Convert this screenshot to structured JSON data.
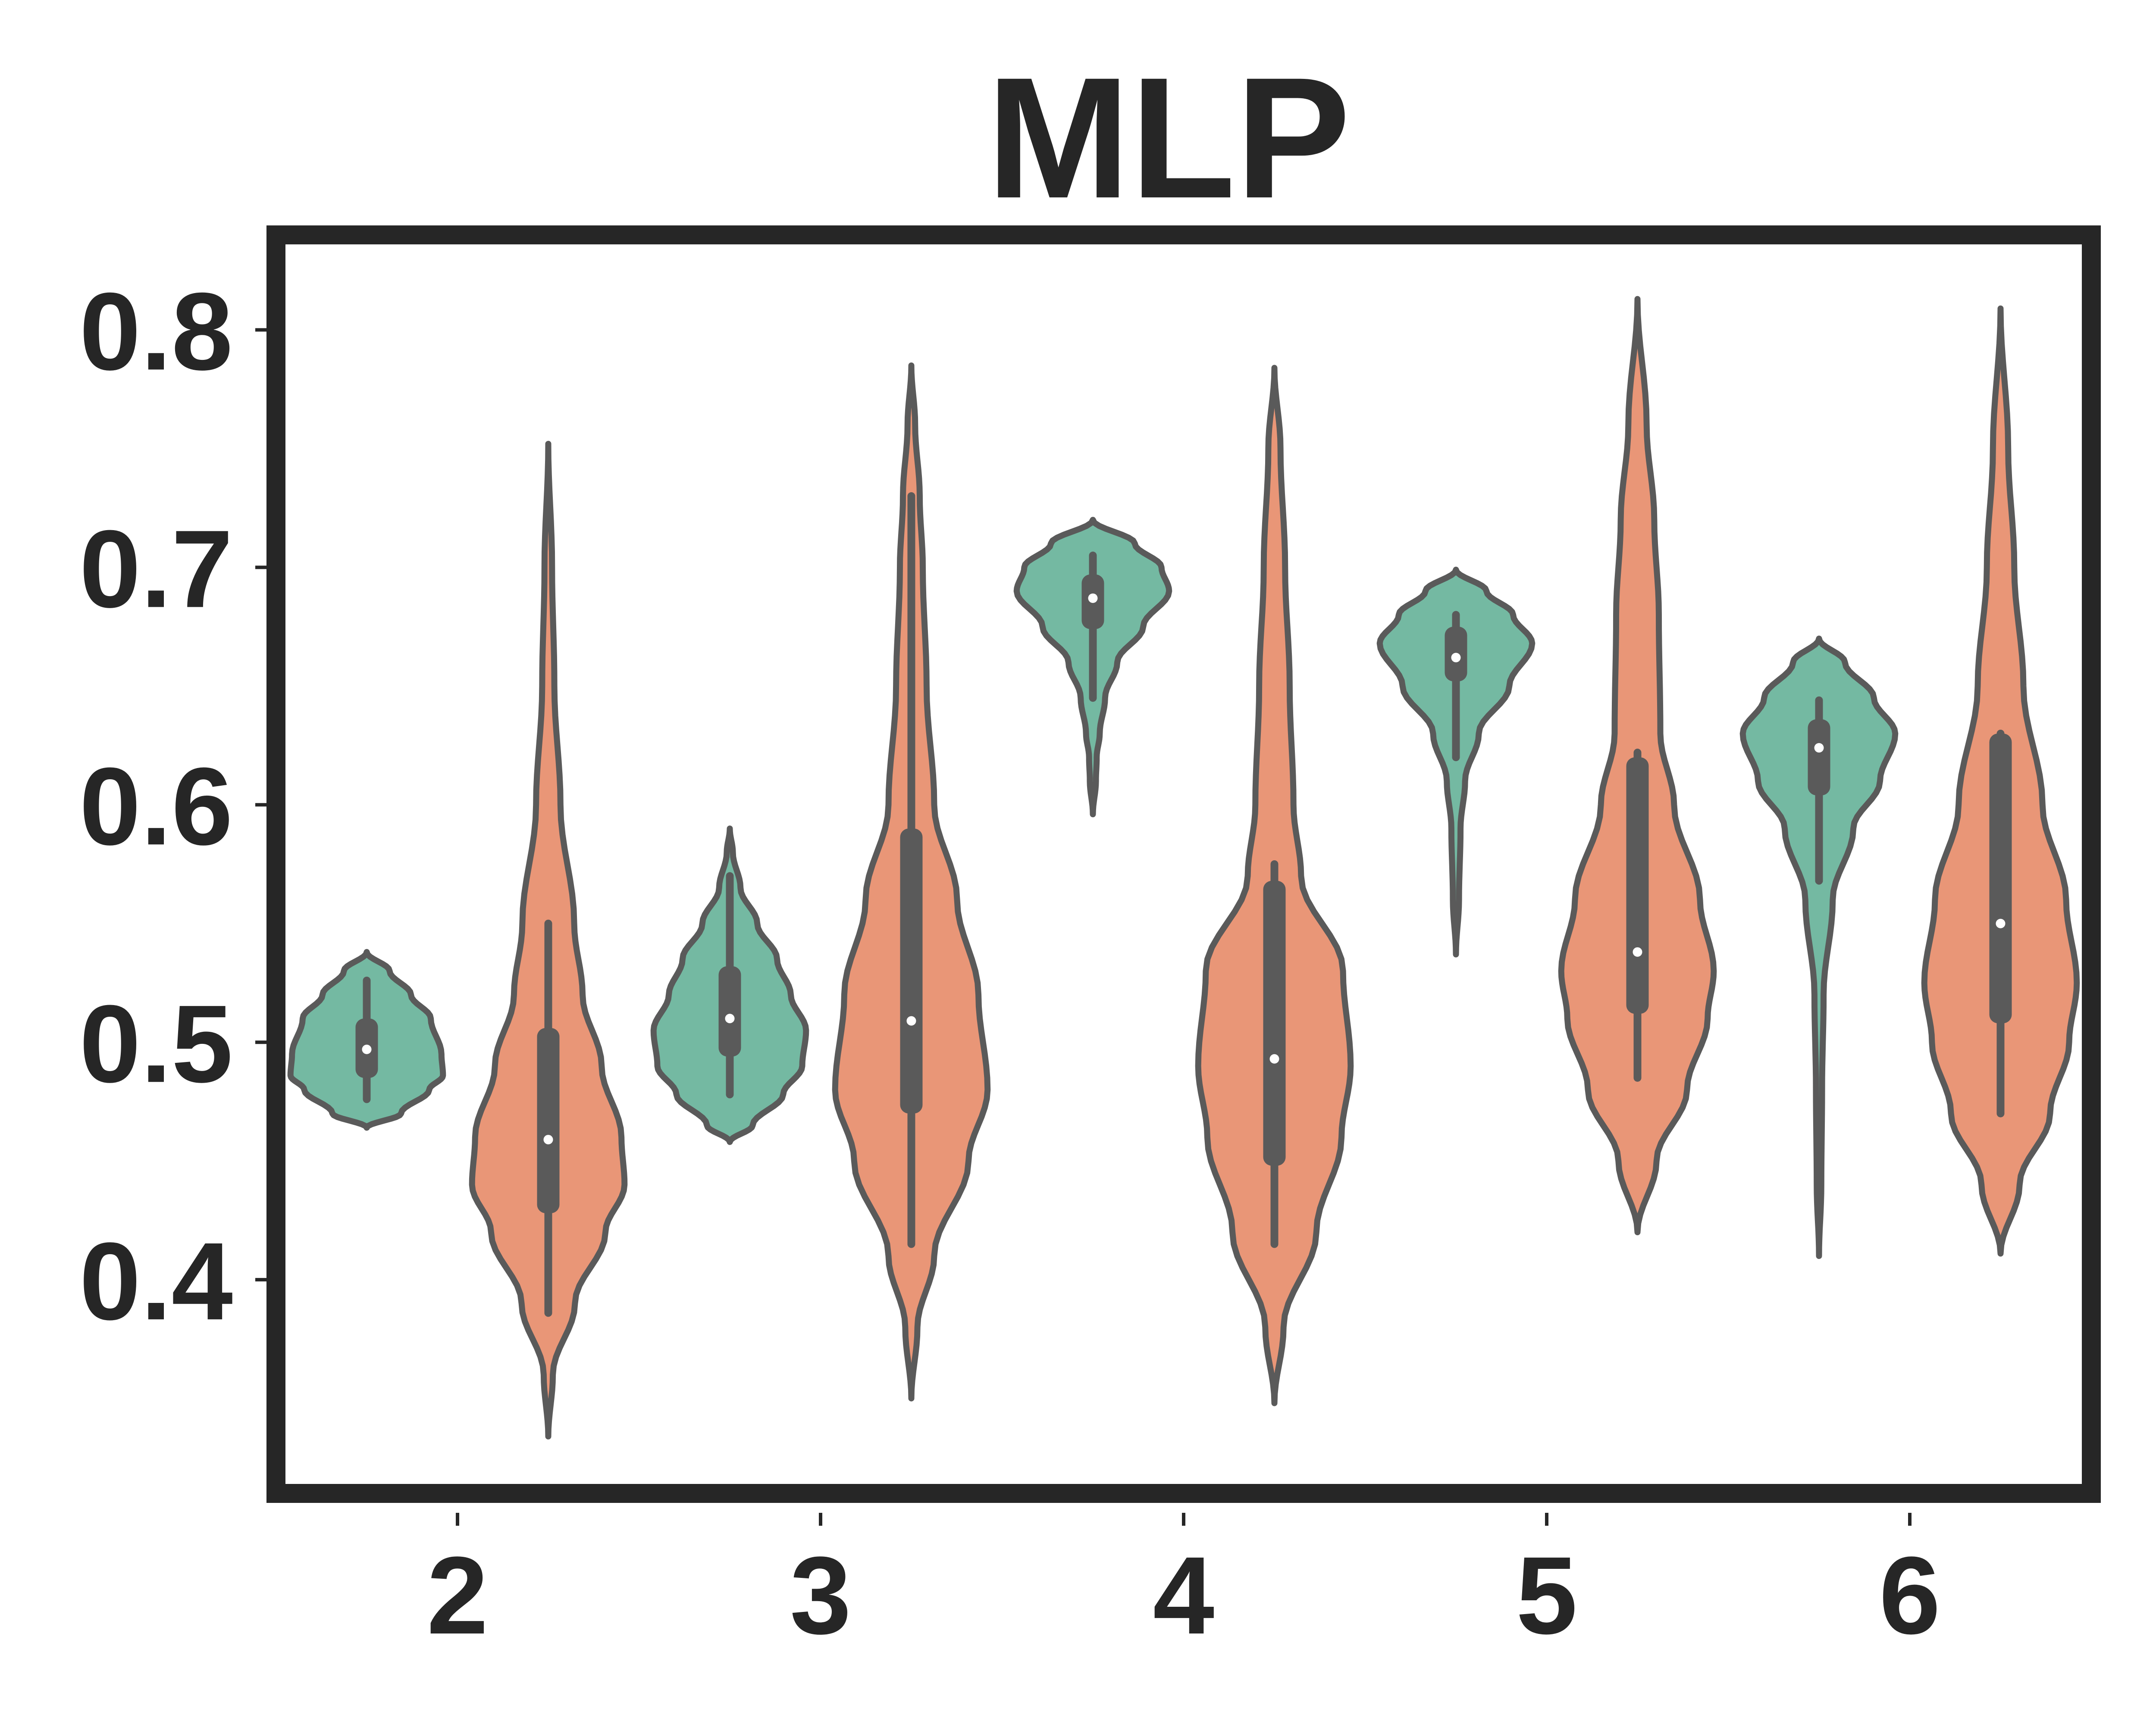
{
  "chart_data": {
    "type": "violin",
    "title": "MLP",
    "xlabel": "",
    "ylabel": "",
    "categories": [
      "2",
      "3",
      "4",
      "5",
      "6"
    ],
    "ylim": [
      0.31,
      0.84
    ],
    "yticks": [
      0.4,
      0.5,
      0.6,
      0.7,
      0.8
    ],
    "ytick_labels": [
      "0.4",
      "0.5",
      "0.6",
      "0.7",
      "0.8"
    ],
    "grid": false,
    "legend": "none",
    "colors": {
      "series_a": "#74b9a2",
      "series_b": "#e99677",
      "outline": "#5a5a5a",
      "frame": "#262626"
    },
    "series": [
      {
        "color": "#74b9a2",
        "violins": [
          {
            "min": 0.464,
            "q1": 0.485,
            "median": 0.497,
            "q3": 0.51,
            "max": 0.538,
            "whisker_low": 0.476,
            "whisker_high": 0.526,
            "profile": [
              [
                0.464,
                0.0
              ],
              [
                0.47,
                0.45
              ],
              [
                0.48,
                0.82
              ],
              [
                0.486,
                1.0
              ],
              [
                0.495,
                0.98
              ],
              [
                0.51,
                0.84
              ],
              [
                0.52,
                0.58
              ],
              [
                0.53,
                0.3
              ],
              [
                0.538,
                0.0
              ]
            ]
          },
          {
            "min": 0.458,
            "q1": 0.494,
            "median": 0.51,
            "q3": 0.532,
            "max": 0.59,
            "whisker_low": 0.478,
            "whisker_high": 0.57,
            "profile": [
              [
                0.458,
                0.0
              ],
              [
                0.465,
                0.3
              ],
              [
                0.478,
                0.7
              ],
              [
                0.49,
                0.95
              ],
              [
                0.505,
                1.0
              ],
              [
                0.52,
                0.8
              ],
              [
                0.535,
                0.62
              ],
              [
                0.55,
                0.36
              ],
              [
                0.565,
                0.14
              ],
              [
                0.58,
                0.04
              ],
              [
                0.59,
                0.0
              ]
            ]
          },
          {
            "min": 0.596,
            "q1": 0.674,
            "median": 0.687,
            "q3": 0.697,
            "max": 0.72,
            "whisker_low": 0.645,
            "whisker_high": 0.705,
            "profile": [
              [
                0.596,
                0.0
              ],
              [
                0.61,
                0.04
              ],
              [
                0.62,
                0.05
              ],
              [
                0.63,
                0.09
              ],
              [
                0.645,
                0.16
              ],
              [
                0.66,
                0.32
              ],
              [
                0.675,
                0.66
              ],
              [
                0.69,
                1.0
              ],
              [
                0.7,
                0.9
              ],
              [
                0.71,
                0.55
              ],
              [
                0.72,
                0.0
              ]
            ]
          },
          {
            "min": 0.537,
            "q1": 0.652,
            "median": 0.662,
            "q3": 0.675,
            "max": 0.699,
            "whisker_low": 0.62,
            "whisker_high": 0.68,
            "profile": [
              [
                0.537,
                0.0
              ],
              [
                0.56,
                0.04
              ],
              [
                0.59,
                0.06
              ],
              [
                0.61,
                0.12
              ],
              [
                0.63,
                0.3
              ],
              [
                0.65,
                0.7
              ],
              [
                0.668,
                1.0
              ],
              [
                0.68,
                0.75
              ],
              [
                0.69,
                0.4
              ],
              [
                0.699,
                0.0
              ]
            ]
          },
          {
            "min": 0.41,
            "q1": 0.604,
            "median": 0.624,
            "q3": 0.636,
            "max": 0.67,
            "whisker_low": 0.568,
            "whisker_high": 0.644,
            "profile": [
              [
                0.41,
                0.0
              ],
              [
                0.44,
                0.03
              ],
              [
                0.48,
                0.04
              ],
              [
                0.52,
                0.06
              ],
              [
                0.56,
                0.18
              ],
              [
                0.59,
                0.45
              ],
              [
                0.61,
                0.8
              ],
              [
                0.63,
                1.0
              ],
              [
                0.645,
                0.72
              ],
              [
                0.66,
                0.34
              ],
              [
                0.67,
                0.0
              ]
            ]
          }
        ]
      },
      {
        "color": "#e99677",
        "violins": [
          {
            "min": 0.334,
            "q1": 0.428,
            "median": 0.459,
            "q3": 0.506,
            "max": 0.752,
            "whisker_low": 0.386,
            "whisker_high": 0.55,
            "profile": [
              [
                0.334,
                0.0
              ],
              [
                0.36,
                0.06
              ],
              [
                0.39,
                0.35
              ],
              [
                0.42,
                0.75
              ],
              [
                0.44,
                1.0
              ],
              [
                0.46,
                0.96
              ],
              [
                0.49,
                0.7
              ],
              [
                0.52,
                0.45
              ],
              [
                0.55,
                0.34
              ],
              [
                0.6,
                0.16
              ],
              [
                0.65,
                0.08
              ],
              [
                0.7,
                0.05
              ],
              [
                0.752,
                0.0
              ]
            ]
          },
          {
            "min": 0.35,
            "q1": 0.47,
            "median": 0.509,
            "q3": 0.59,
            "max": 0.785,
            "whisker_low": 0.415,
            "whisker_high": 0.73,
            "profile": [
              [
                0.35,
                0.0
              ],
              [
                0.38,
                0.08
              ],
              [
                0.41,
                0.3
              ],
              [
                0.45,
                0.75
              ],
              [
                0.48,
                1.0
              ],
              [
                0.52,
                0.88
              ],
              [
                0.56,
                0.6
              ],
              [
                0.6,
                0.3
              ],
              [
                0.65,
                0.2
              ],
              [
                0.7,
                0.15
              ],
              [
                0.73,
                0.11
              ],
              [
                0.76,
                0.05
              ],
              [
                0.785,
                0.0
              ]
            ]
          },
          {
            "min": 0.348,
            "q1": 0.448,
            "median": 0.493,
            "q3": 0.568,
            "max": 0.784,
            "whisker_low": 0.415,
            "whisker_high": 0.575,
            "profile": [
              [
                0.348,
                0.0
              ],
              [
                0.38,
                0.12
              ],
              [
                0.42,
                0.55
              ],
              [
                0.46,
                0.88
              ],
              [
                0.49,
                1.0
              ],
              [
                0.53,
                0.9
              ],
              [
                0.57,
                0.35
              ],
              [
                0.6,
                0.25
              ],
              [
                0.65,
                0.2
              ],
              [
                0.7,
                0.14
              ],
              [
                0.75,
                0.08
              ],
              [
                0.784,
                0.0
              ]
            ]
          },
          {
            "min": 0.42,
            "q1": 0.512,
            "median": 0.538,
            "q3": 0.62,
            "max": 0.813,
            "whisker_low": 0.485,
            "whisker_high": 0.622,
            "profile": [
              [
                0.42,
                0.0
              ],
              [
                0.45,
                0.25
              ],
              [
                0.48,
                0.65
              ],
              [
                0.51,
                0.92
              ],
              [
                0.53,
                1.0
              ],
              [
                0.56,
                0.82
              ],
              [
                0.6,
                0.48
              ],
              [
                0.63,
                0.3
              ],
              [
                0.68,
                0.28
              ],
              [
                0.72,
                0.22
              ],
              [
                0.76,
                0.12
              ],
              [
                0.813,
                0.0
              ]
            ]
          },
          {
            "min": 0.411,
            "q1": 0.508,
            "median": 0.55,
            "q3": 0.63,
            "max": 0.809,
            "whisker_low": 0.47,
            "whisker_high": 0.63,
            "profile": [
              [
                0.411,
                0.0
              ],
              [
                0.44,
                0.25
              ],
              [
                0.47,
                0.65
              ],
              [
                0.5,
                0.9
              ],
              [
                0.525,
                1.0
              ],
              [
                0.56,
                0.86
              ],
              [
                0.6,
                0.55
              ],
              [
                0.65,
                0.3
              ],
              [
                0.7,
                0.18
              ],
              [
                0.75,
                0.1
              ],
              [
                0.809,
                0.0
              ]
            ]
          }
        ]
      }
    ]
  }
}
